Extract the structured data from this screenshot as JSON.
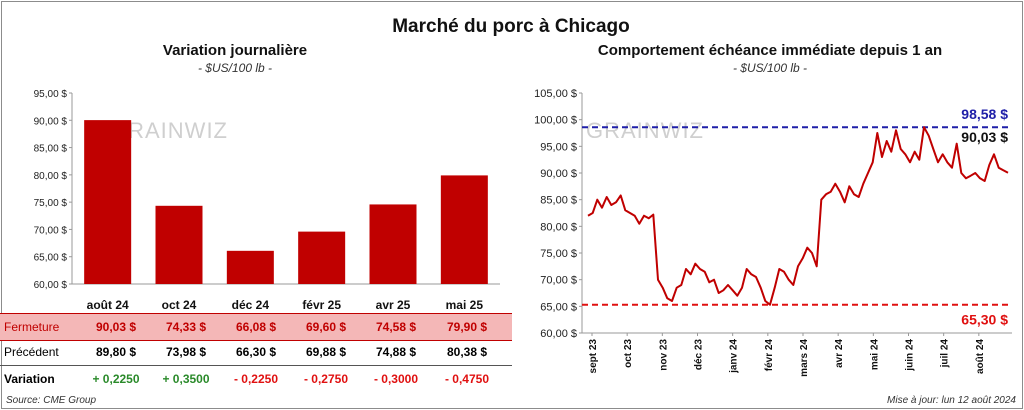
{
  "title": "Marché du porc à Chicago",
  "left_panel": {
    "subtitle": "Variation journalière",
    "unit": "- $US/100 lb -"
  },
  "right_panel": {
    "subtitle": "Comportement échéance immédiate depuis 1 an",
    "unit": "- $US/100 lb -"
  },
  "watermark": "GRAINWIZ",
  "source": "Source: CME Group",
  "updated": "Mise à jour: lun 12 août 2024",
  "colors": {
    "bar": "#c00000",
    "line": "#c00000",
    "high": "#1f1fa8",
    "low": "#e01010",
    "highlight_row": "#f4b7b7",
    "positive": "#2a8a2a",
    "negative": "#e01010"
  },
  "table": {
    "rows": [
      {
        "label": "Fermeture",
        "values": [
          "90,03 $",
          "74,33 $",
          "66,08 $",
          "69,60 $",
          "74,58 $",
          "79,90 $"
        ]
      },
      {
        "label": "Précédent",
        "values": [
          "89,80 $",
          "73,98 $",
          "66,30 $",
          "69,88 $",
          "74,88 $",
          "80,38 $"
        ]
      },
      {
        "label": "Variation",
        "values": [
          "+ 0,2250",
          "+ 0,3500",
          "- 0,2250",
          "- 0,2750",
          "- 0,3000",
          "- 0,4750"
        ]
      }
    ]
  },
  "chart_data": [
    {
      "type": "bar",
      "categories": [
        "août 24",
        "oct 24",
        "déc 24",
        "févr 25",
        "avr 25",
        "mai 25"
      ],
      "values": [
        90.03,
        74.33,
        66.08,
        69.6,
        74.58,
        79.9
      ],
      "title": "Variation journalière",
      "ylim": [
        60,
        95
      ],
      "yticks": [
        "60,00 $",
        "65,00 $",
        "70,00 $",
        "75,00 $",
        "80,00 $",
        "85,00 $",
        "90,00 $",
        "95,00 $"
      ],
      "grid": false
    },
    {
      "type": "line",
      "title": "Comportement échéance immédiate depuis 1 an",
      "x_ticks": [
        "sept 23",
        "oct 23",
        "nov 23",
        "déc 23",
        "janv 24",
        "févr 24",
        "mars 24",
        "avr 24",
        "mai 24",
        "juin 24",
        "juil 24",
        "août 24"
      ],
      "ylim": [
        60,
        105
      ],
      "yticks": [
        "60,00 $",
        "65,00 $",
        "70,00 $",
        "75,00 $",
        "80,00 $",
        "85,00 $",
        "90,00 $",
        "95,00 $",
        "100,00 $",
        "105,00 $"
      ],
      "values": [
        82.0,
        82.5,
        85.0,
        83.5,
        85.5,
        84.0,
        84.5,
        85.8,
        83.0,
        82.5,
        82.0,
        80.5,
        82.0,
        81.5,
        82.2,
        70.0,
        68.5,
        66.5,
        66.0,
        68.5,
        69.0,
        72.0,
        71.0,
        73.0,
        72.0,
        71.5,
        69.5,
        70.0,
        67.5,
        68.0,
        69.0,
        68.0,
        67.0,
        68.5,
        72.0,
        71.0,
        70.5,
        68.5,
        66.0,
        65.3,
        68.5,
        72.0,
        71.5,
        70.0,
        69.0,
        72.5,
        74.0,
        76.0,
        75.0,
        72.5,
        85.0,
        86.0,
        86.5,
        88.0,
        86.5,
        84.5,
        87.5,
        86.0,
        85.5,
        88.0,
        90.0,
        92.0,
        97.5,
        93.0,
        96.0,
        94.0,
        98.0,
        94.5,
        93.5,
        92.0,
        94.0,
        92.5,
        98.58,
        97.0,
        94.5,
        92.0,
        93.5,
        92.0,
        91.0,
        95.5,
        90.0,
        89.0,
        89.5,
        90.0,
        89.0,
        88.5,
        91.5,
        93.5,
        91.0,
        90.5,
        90.03
      ],
      "annotations": [
        {
          "label": "98,58 $",
          "value": 98.58,
          "style": "dashed",
          "color": "high"
        },
        {
          "label": "65,30 $",
          "value": 65.3,
          "style": "dashed",
          "color": "low"
        },
        {
          "label": "90,03 $",
          "value": 90.03,
          "style": "label"
        }
      ],
      "grid": false
    }
  ]
}
